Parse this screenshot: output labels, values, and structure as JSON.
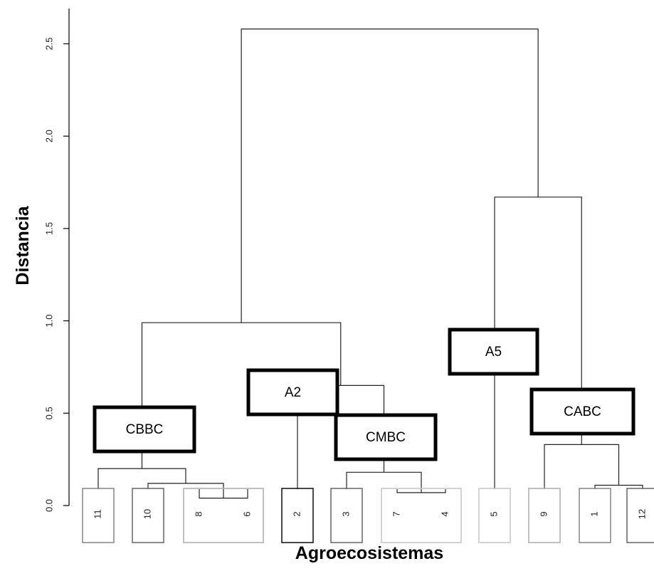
{
  "chart_data": {
    "type": "dendrogram",
    "xlabel": "Agroecosistemas",
    "ylabel": "Distancia",
    "ylim": [
      0,
      2.6
    ],
    "yticks": [
      {
        "value": 0.0,
        "label": "0.0"
      },
      {
        "value": 0.5,
        "label": "0.5"
      },
      {
        "value": 1.0,
        "label": "1.0"
      },
      {
        "value": 1.5,
        "label": "1.5"
      },
      {
        "value": 2.0,
        "label": "2.0"
      },
      {
        "value": 2.5,
        "label": "2.5"
      }
    ],
    "leaf_order": [
      "11",
      "10",
      "8",
      "6",
      "2",
      "3",
      "7",
      "4",
      "5",
      "9",
      "1",
      "12"
    ],
    "merges": [
      {
        "id": "m1",
        "left": "8",
        "right": "6",
        "height": 0.04
      },
      {
        "id": "m2",
        "left": "7",
        "right": "4",
        "height": 0.07
      },
      {
        "id": "m3",
        "left": "1",
        "right": "12",
        "height": 0.11
      },
      {
        "id": "m4",
        "left": "10",
        "right": "m1",
        "height": 0.12
      },
      {
        "id": "m5",
        "left": "3",
        "right": "m2",
        "height": 0.18
      },
      {
        "id": "m6",
        "left": "11",
        "right": "m4",
        "height": 0.2
      },
      {
        "id": "m7",
        "left": "9",
        "right": "m3",
        "height": 0.33
      },
      {
        "id": "m8",
        "left": "2",
        "right": "m5",
        "height": 0.65
      },
      {
        "id": "m9",
        "left": "m6",
        "right": "m8",
        "height": 0.99
      },
      {
        "id": "m10",
        "left": "5",
        "right": "m7",
        "height": 1.67
      },
      {
        "id": "m11",
        "left": "m9",
        "right": "m10",
        "height": 2.58
      }
    ],
    "groups": [
      {
        "label": "CBBC",
        "members": [
          "11",
          "10",
          "8",
          "6"
        ]
      },
      {
        "label": "A2",
        "members": [
          "2"
        ]
      },
      {
        "label": "CMBC",
        "members": [
          "3",
          "7",
          "4"
        ]
      },
      {
        "label": "A5",
        "members": [
          "5"
        ]
      },
      {
        "label": "CABC",
        "members": [
          "9",
          "1",
          "12"
        ]
      }
    ],
    "leaf_boxes": [
      {
        "members": [
          "11"
        ],
        "color": "#8c8c8c"
      },
      {
        "members": [
          "10"
        ],
        "color": "#6e6e6e"
      },
      {
        "members": [
          "8",
          "6"
        ],
        "color": "#b0b0b0"
      },
      {
        "members": [
          "2"
        ],
        "color": "#1a1a1a"
      },
      {
        "members": [
          "3"
        ],
        "color": "#6e6e6e"
      },
      {
        "members": [
          "7",
          "4"
        ],
        "color": "#c8c8c8"
      },
      {
        "members": [
          "5"
        ],
        "color": "#c8c8c8"
      },
      {
        "members": [
          "9"
        ],
        "color": "#b0b0b0"
      },
      {
        "members": [
          "1"
        ],
        "color": "#8c8c8c"
      },
      {
        "members": [
          "12"
        ],
        "color": "#6e6e6e"
      }
    ]
  }
}
